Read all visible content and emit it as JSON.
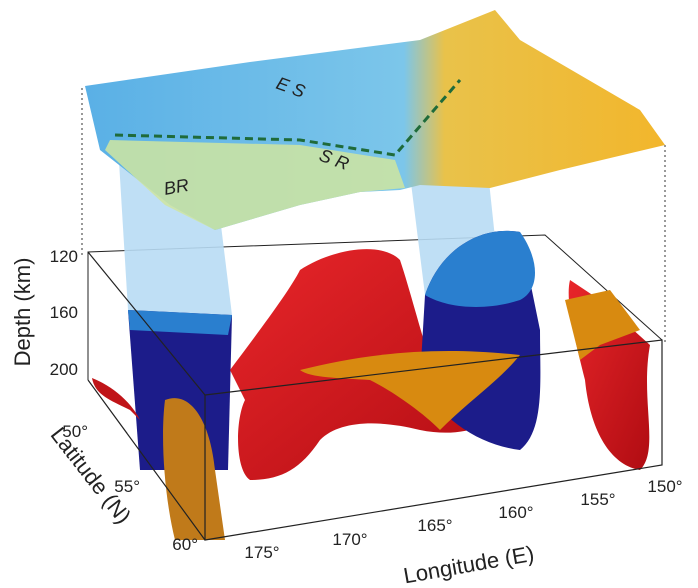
{
  "surface_labels": [
    "E S",
    "S R",
    "BR"
  ],
  "depth_axis": {
    "title": "Depth (km)",
    "ticks": [
      "120",
      "160",
      "200"
    ]
  },
  "latitude_axis": {
    "title": "Latitude (N)",
    "ticks": [
      "50°",
      "55°",
      "60°"
    ]
  },
  "longitude_axis": {
    "title": "Longitude (E)",
    "ticks": [
      "175°",
      "170°",
      "165°",
      "160°",
      "155°",
      "150°"
    ]
  }
}
